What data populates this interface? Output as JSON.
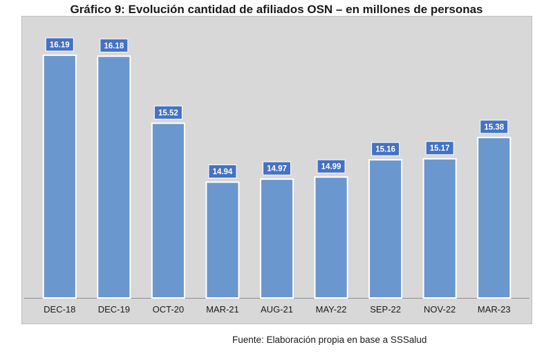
{
  "chart_data": {
    "type": "bar",
    "title": "Gráfico 9: Evolución cantidad de afiliados OSN – en millones de personas",
    "categories": [
      "DEC-18",
      "DEC-19",
      "OCT-20",
      "MAR-21",
      "AUG-21",
      "MAY-22",
      "SEP-22",
      "NOV-22",
      "MAR-23"
    ],
    "values": [
      16.19,
      16.18,
      15.52,
      14.94,
      14.97,
      14.99,
      15.16,
      15.17,
      15.38
    ],
    "value_labels": [
      "16.19",
      "16.18",
      "15.52",
      "14.94",
      "14.97",
      "14.99",
      "15.16",
      "15.17",
      "15.38"
    ],
    "xlabel": "",
    "ylabel": "",
    "ylim": [
      13.8,
      16.4
    ],
    "grid": false,
    "legend": "none",
    "source": "Fuente: Elaboración propia en base a SSSalud",
    "colors": {
      "bar": "#6b97cf",
      "bar_edge": "#ffffff",
      "label_bg": "#4472c4",
      "label_text": "#ffffff",
      "plot_bg": "#d8d8d8",
      "axis": "#8c8c8c",
      "tick_text": "#1a1a1a"
    }
  }
}
